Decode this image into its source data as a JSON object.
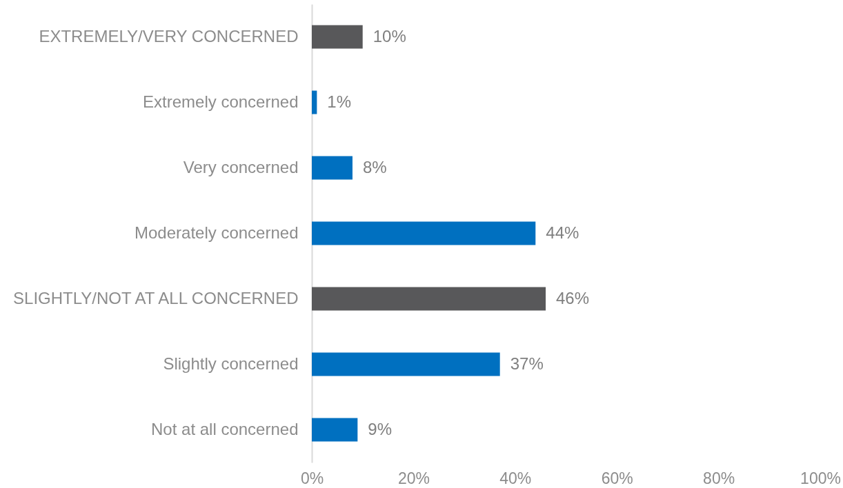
{
  "chart_data": {
    "type": "bar",
    "orientation": "horizontal",
    "categories": [
      "EXTREMELY/VERY CONCERNED",
      "Extremely concerned",
      "Very concerned",
      "Moderately concerned",
      "SLIGHTLY/NOT AT ALL CONCERNED",
      "Slightly concerned",
      "Not at all concerned"
    ],
    "values": [
      10,
      1,
      8,
      44,
      46,
      37,
      9
    ],
    "colors": [
      "#58585a",
      "#0070c0",
      "#0070c0",
      "#0070c0",
      "#58585a",
      "#0070c0",
      "#0070c0"
    ],
    "value_labels": [
      "10%",
      "1%",
      "8%",
      "44%",
      "46%",
      "37%",
      "9%"
    ],
    "xlim": [
      0,
      100
    ],
    "xticks": [
      {
        "value": 0,
        "label": "0%"
      },
      {
        "value": 20,
        "label": "20%"
      },
      {
        "value": 40,
        "label": "40%"
      },
      {
        "value": 60,
        "label": "60%"
      },
      {
        "value": 80,
        "label": "80%"
      },
      {
        "value": 100,
        "label": "100%"
      }
    ],
    "grid": false
  }
}
